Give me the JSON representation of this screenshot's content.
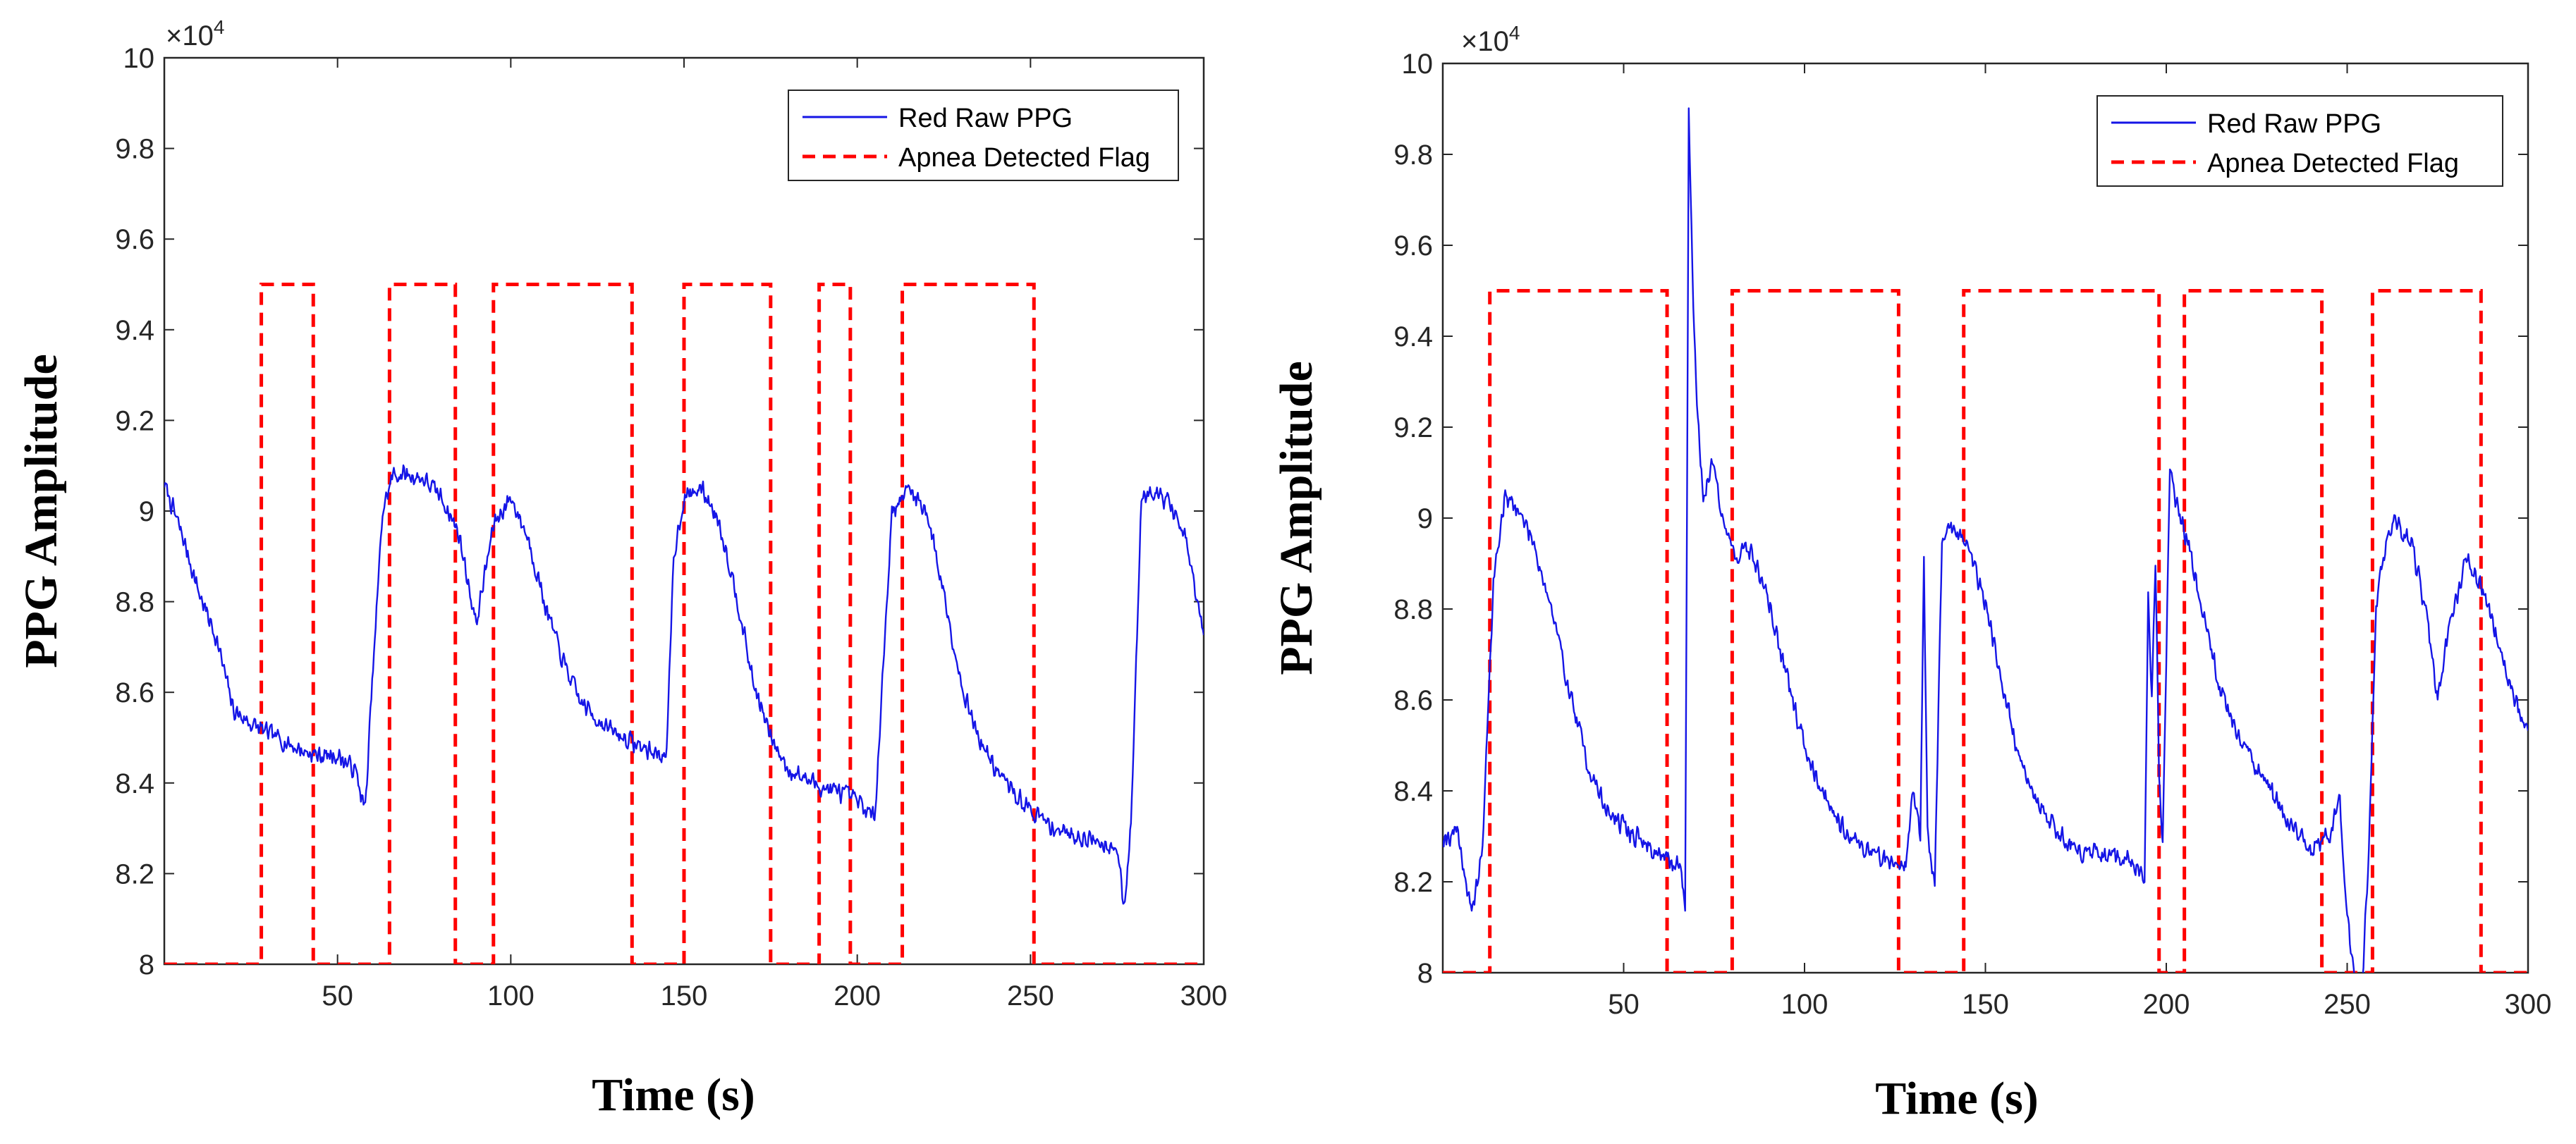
{
  "colors": {
    "ppg": "#1515e6",
    "flag": "#ff0000",
    "axis": "#262626"
  },
  "chart_data": [
    {
      "type": "line",
      "title": "",
      "xlabel": "Time (s)",
      "ylabel": "PPG Amplitude",
      "y_exponent_label": "×10",
      "y_exponent_power": "4",
      "xlim": [
        0,
        300
      ],
      "ylim": [
        8,
        10
      ],
      "xticks": [
        50,
        100,
        150,
        200,
        250,
        300
      ],
      "xtick_labels": [
        "50",
        "100",
        "150",
        "200",
        "250",
        "300"
      ],
      "yticks": [
        8,
        8.2,
        8.4,
        8.6,
        8.8,
        9,
        9.2,
        9.4,
        9.6,
        9.8,
        10
      ],
      "ytick_labels": [
        "8",
        "8.2",
        "8.4",
        "8.6",
        "8.8",
        "9",
        "9.2",
        "9.4",
        "9.6",
        "9.8",
        "10"
      ],
      "legend": {
        "location": "top-right",
        "entries": [
          "Red Raw PPG",
          "Apnea Detected Flag"
        ]
      },
      "series": [
        {
          "name": "Red Raw PPG",
          "style": "solid",
          "noise": 0.025,
          "seed": 7,
          "x": [
            0,
            5,
            10,
            15,
            20,
            25,
            30,
            35,
            40,
            45,
            50,
            55,
            58,
            60,
            63,
            66,
            70,
            75,
            80,
            85,
            90,
            95,
            100,
            105,
            110,
            115,
            120,
            125,
            130,
            135,
            140,
            145,
            147,
            150,
            155,
            160,
            165,
            170,
            175,
            180,
            185,
            190,
            195,
            200,
            205,
            210,
            215,
            220,
            225,
            230,
            235,
            240,
            245,
            250,
            255,
            260,
            265,
            270,
            275,
            277,
            279,
            282,
            285,
            290,
            295,
            300
          ],
          "y": [
            9.06,
            8.95,
            8.82,
            8.72,
            8.56,
            8.53,
            8.51,
            8.49,
            8.47,
            8.46,
            8.46,
            8.43,
            8.34,
            8.62,
            9.0,
            9.08,
            9.08,
            9.07,
            9.03,
            8.95,
            8.75,
            8.97,
            9.03,
            8.94,
            8.79,
            8.67,
            8.58,
            8.54,
            8.51,
            8.49,
            8.47,
            8.46,
            8.9,
            9.03,
            9.05,
            8.98,
            8.82,
            8.62,
            8.5,
            8.43,
            8.41,
            8.39,
            8.38,
            8.36,
            8.32,
            9.0,
            9.05,
            9.0,
            8.82,
            8.62,
            8.5,
            8.43,
            8.38,
            8.34,
            8.31,
            8.29,
            8.28,
            8.27,
            8.26,
            8.12,
            8.3,
            9.03,
            9.05,
            9.02,
            8.93,
            8.72
          ]
        },
        {
          "name": "Apnea Detected Flag",
          "style": "dashed",
          "intervals": [
            [
              28,
              43
            ],
            [
              65,
              84
            ],
            [
              95,
              135
            ],
            [
              150,
              175
            ],
            [
              189,
              198
            ],
            [
              213,
              251
            ]
          ],
          "low": 8,
          "high": 9.5
        }
      ]
    },
    {
      "type": "line",
      "title": "",
      "xlabel": "Time (s)",
      "ylabel": "PPG Amplitude",
      "y_exponent_label": "×10",
      "y_exponent_power": "4",
      "xlim": [
        0,
        300
      ],
      "ylim": [
        8,
        10
      ],
      "xticks": [
        50,
        100,
        150,
        200,
        250,
        300
      ],
      "xtick_labels": [
        "50",
        "100",
        "150",
        "200",
        "250",
        "300"
      ],
      "yticks": [
        8,
        8.2,
        8.4,
        8.6,
        8.8,
        9,
        9.2,
        9.4,
        9.6,
        9.8,
        10
      ],
      "ytick_labels": [
        "8",
        "8.2",
        "8.4",
        "8.6",
        "8.8",
        "9",
        "9.2",
        "9.4",
        "9.6",
        "9.8",
        "10"
      ],
      "legend": {
        "location": "top-right",
        "entries": [
          "Red Raw PPG",
          "Apnea Detected Flag"
        ]
      },
      "series": [
        {
          "name": "Red Raw PPG",
          "style": "solid",
          "noise": 0.028,
          "seed": 19,
          "x": [
            0,
            2,
            4,
            6,
            8,
            11,
            14,
            17,
            20,
            25,
            30,
            35,
            40,
            45,
            50,
            55,
            60,
            63,
            66,
            67,
            68,
            69,
            70,
            72,
            74,
            75,
            77,
            79,
            81,
            85,
            90,
            95,
            100,
            105,
            110,
            115,
            120,
            125,
            128,
            130,
            132,
            133,
            134,
            136,
            138,
            140,
            144,
            150,
            155,
            160,
            165,
            170,
            175,
            180,
            185,
            190,
            194,
            195,
            196,
            197,
            198,
            199,
            201,
            203,
            206,
            210,
            215,
            220,
            225,
            230,
            235,
            240,
            245,
            248,
            250,
            252,
            254,
            256,
            258,
            260,
            263,
            268,
            272,
            275,
            278,
            283,
            286,
            290,
            295,
            300
          ],
          "y": [
            8.3,
            8.3,
            8.32,
            8.22,
            8.12,
            8.28,
            8.86,
            9.04,
            9.03,
            8.95,
            8.8,
            8.62,
            8.46,
            8.36,
            8.32,
            8.29,
            8.26,
            8.24,
            8.24,
            8.13,
            9.9,
            9.55,
            9.28,
            9.05,
            9.1,
            9.12,
            9.02,
            8.95,
            8.92,
            8.93,
            8.82,
            8.65,
            8.5,
            8.4,
            8.33,
            8.28,
            8.26,
            8.24,
            8.24,
            8.4,
            8.3,
            8.9,
            8.3,
            8.2,
            8.95,
            8.98,
            8.96,
            8.82,
            8.62,
            8.45,
            8.37,
            8.31,
            8.27,
            8.26,
            8.25,
            8.25,
            8.2,
            8.82,
            8.6,
            8.9,
            8.45,
            8.28,
            9.12,
            9.02,
            8.95,
            8.8,
            8.62,
            8.52,
            8.45,
            8.38,
            8.32,
            8.27,
            8.3,
            8.38,
            8.12,
            7.98,
            7.95,
            8.26,
            8.8,
            8.92,
            8.99,
            8.94,
            8.78,
            8.6,
            8.75,
            8.91,
            8.87,
            8.78,
            8.63,
            8.52
          ]
        },
        {
          "name": "Apnea Detected Flag",
          "style": "dashed",
          "intervals": [
            [
              13,
              62
            ],
            [
              80,
              126
            ],
            [
              144,
              198
            ],
            [
              205,
              243
            ],
            [
              257,
              287
            ]
          ],
          "low": 8,
          "high": 9.5
        }
      ]
    }
  ]
}
